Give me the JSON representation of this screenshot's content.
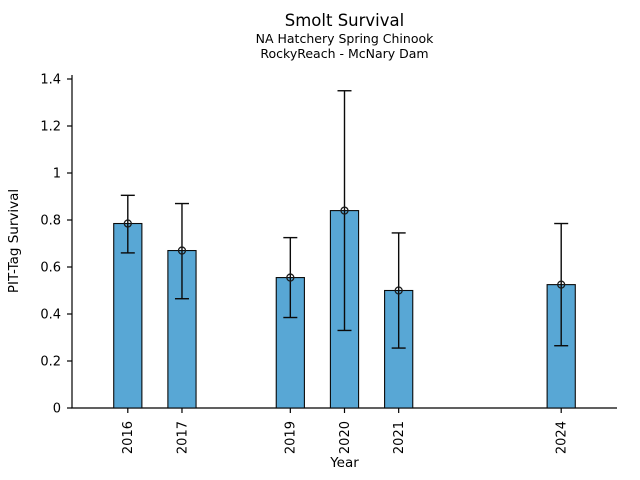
{
  "figure": {
    "title": "Smolt Survival",
    "subtitle1": "NA Hatchery Spring Chinook",
    "subtitle2": "RockyReach - McNary Dam"
  },
  "chart_data": {
    "type": "bar",
    "title": "Smolt Survival",
    "subtitle1": "NA Hatchery Spring Chinook",
    "subtitle2": "RockyReach - McNary Dam",
    "xlabel": "Year",
    "ylabel": "PIT-Tag Survival",
    "categories": [
      2016,
      2017,
      2019,
      2020,
      2021,
      2024
    ],
    "values": [
      0.785,
      0.67,
      0.555,
      0.84,
      0.5,
      0.525
    ],
    "error_low": [
      0.66,
      0.465,
      0.385,
      0.33,
      0.255,
      0.265
    ],
    "error_high": [
      0.905,
      0.87,
      0.725,
      1.35,
      0.745,
      0.785
    ],
    "xlim": [
      2014.97,
      2025.03
    ],
    "ylim": [
      0,
      1.417
    ],
    "yticks": [
      0,
      0.2,
      0.4,
      0.6,
      0.8,
      1.0,
      1.2,
      1.4
    ],
    "ytick_labels": [
      "0",
      "0.2",
      "0.4",
      "0.6",
      "0.8",
      "1",
      "1.2",
      "1.4"
    ],
    "grid": false,
    "legend": "none",
    "bar_width_years": 0.52,
    "bar_color": "#58A7D5",
    "bar_edge_color": "#0a0a0a",
    "error_color": "#0a0a0a",
    "marker": "open-circle",
    "marker_color": "#1a1a1a",
    "axis_color": "#000000"
  }
}
